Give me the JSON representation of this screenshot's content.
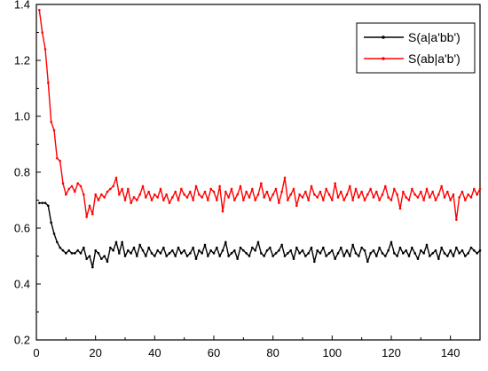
{
  "chart_data": {
    "type": "line",
    "title": "",
    "xlabel": "",
    "ylabel": "",
    "xlim": [
      0,
      150
    ],
    "ylim": [
      0.2,
      1.4
    ],
    "xticks": [
      0,
      20,
      40,
      60,
      80,
      100,
      120,
      140
    ],
    "yticks": [
      0.2,
      0.4,
      0.6,
      0.8,
      1.0,
      1.2,
      1.4
    ],
    "xtick_labels": [
      "0",
      "20",
      "40",
      "60",
      "80",
      "100",
      "120",
      "140"
    ],
    "ytick_labels": [
      "0.2",
      "0.4",
      "0.6",
      "0.8",
      "1.0",
      "1.2",
      "1.4"
    ],
    "grid": false,
    "legend_position": "top-right",
    "x": [
      1,
      2,
      3,
      4,
      5,
      6,
      7,
      8,
      9,
      10,
      11,
      12,
      13,
      14,
      15,
      16,
      17,
      18,
      19,
      20,
      21,
      22,
      23,
      24,
      25,
      26,
      27,
      28,
      29,
      30,
      31,
      32,
      33,
      34,
      35,
      36,
      37,
      38,
      39,
      40,
      41,
      42,
      43,
      44,
      45,
      46,
      47,
      48,
      49,
      50,
      51,
      52,
      53,
      54,
      55,
      56,
      57,
      58,
      59,
      60,
      61,
      62,
      63,
      64,
      65,
      66,
      67,
      68,
      69,
      70,
      71,
      72,
      73,
      74,
      75,
      76,
      77,
      78,
      79,
      80,
      81,
      82,
      83,
      84,
      85,
      86,
      87,
      88,
      89,
      90,
      91,
      92,
      93,
      94,
      95,
      96,
      97,
      98,
      99,
      100,
      101,
      102,
      103,
      104,
      105,
      106,
      107,
      108,
      109,
      110,
      111,
      112,
      113,
      114,
      115,
      116,
      117,
      118,
      119,
      120,
      121,
      122,
      123,
      124,
      125,
      126,
      127,
      128,
      129,
      130,
      131,
      132,
      133,
      134,
      135,
      136,
      137,
      138,
      139,
      140,
      141,
      142,
      143,
      144,
      145,
      146,
      147,
      148,
      149,
      150
    ],
    "series": [
      {
        "name": "S(a|a'bb')",
        "color": "#000000",
        "values": [
          0.69,
          0.69,
          0.69,
          0.68,
          0.62,
          0.58,
          0.55,
          0.53,
          0.52,
          0.51,
          0.52,
          0.51,
          0.51,
          0.52,
          0.51,
          0.53,
          0.49,
          0.5,
          0.46,
          0.52,
          0.51,
          0.49,
          0.5,
          0.48,
          0.53,
          0.52,
          0.55,
          0.51,
          0.55,
          0.5,
          0.52,
          0.51,
          0.53,
          0.5,
          0.54,
          0.52,
          0.5,
          0.53,
          0.51,
          0.5,
          0.52,
          0.51,
          0.53,
          0.5,
          0.51,
          0.52,
          0.5,
          0.53,
          0.51,
          0.52,
          0.5,
          0.51,
          0.53,
          0.49,
          0.52,
          0.51,
          0.54,
          0.5,
          0.52,
          0.51,
          0.53,
          0.5,
          0.52,
          0.55,
          0.5,
          0.51,
          0.52,
          0.49,
          0.53,
          0.52,
          0.51,
          0.5,
          0.53,
          0.52,
          0.55,
          0.51,
          0.5,
          0.52,
          0.53,
          0.5,
          0.51,
          0.52,
          0.54,
          0.5,
          0.51,
          0.52,
          0.49,
          0.53,
          0.51,
          0.52,
          0.5,
          0.51,
          0.53,
          0.48,
          0.52,
          0.51,
          0.53,
          0.5,
          0.51,
          0.52,
          0.49,
          0.51,
          0.53,
          0.5,
          0.52,
          0.5,
          0.54,
          0.51,
          0.5,
          0.53,
          0.52,
          0.48,
          0.51,
          0.52,
          0.5,
          0.53,
          0.51,
          0.5,
          0.52,
          0.55,
          0.51,
          0.5,
          0.53,
          0.51,
          0.52,
          0.5,
          0.53,
          0.51,
          0.49,
          0.52,
          0.51,
          0.54,
          0.5,
          0.51,
          0.52,
          0.49,
          0.53,
          0.51,
          0.5,
          0.52,
          0.5,
          0.53,
          0.51,
          0.52,
          0.5,
          0.51,
          0.53,
          0.52,
          0.51,
          0.52
        ]
      },
      {
        "name": "S(ab|a'b')",
        "color": "#ff0000",
        "values": [
          1.38,
          1.3,
          1.24,
          1.12,
          0.98,
          0.95,
          0.85,
          0.84,
          0.76,
          0.72,
          0.74,
          0.75,
          0.73,
          0.76,
          0.75,
          0.72,
          0.64,
          0.68,
          0.65,
          0.72,
          0.7,
          0.72,
          0.71,
          0.73,
          0.74,
          0.75,
          0.78,
          0.72,
          0.74,
          0.7,
          0.74,
          0.69,
          0.71,
          0.7,
          0.72,
          0.75,
          0.71,
          0.73,
          0.7,
          0.72,
          0.71,
          0.74,
          0.7,
          0.72,
          0.69,
          0.71,
          0.73,
          0.7,
          0.74,
          0.72,
          0.71,
          0.73,
          0.7,
          0.75,
          0.72,
          0.71,
          0.73,
          0.7,
          0.74,
          0.73,
          0.7,
          0.75,
          0.66,
          0.73,
          0.71,
          0.74,
          0.7,
          0.72,
          0.75,
          0.7,
          0.73,
          0.71,
          0.74,
          0.7,
          0.72,
          0.76,
          0.71,
          0.73,
          0.7,
          0.72,
          0.74,
          0.69,
          0.73,
          0.78,
          0.7,
          0.72,
          0.74,
          0.68,
          0.72,
          0.71,
          0.73,
          0.7,
          0.75,
          0.72,
          0.71,
          0.73,
          0.7,
          0.74,
          0.72,
          0.7,
          0.76,
          0.71,
          0.73,
          0.7,
          0.72,
          0.75,
          0.7,
          0.74,
          0.71,
          0.73,
          0.7,
          0.72,
          0.74,
          0.71,
          0.73,
          0.7,
          0.72,
          0.75,
          0.71,
          0.7,
          0.74,
          0.72,
          0.67,
          0.73,
          0.71,
          0.7,
          0.74,
          0.72,
          0.71,
          0.73,
          0.7,
          0.74,
          0.71,
          0.73,
          0.7,
          0.72,
          0.75,
          0.71,
          0.73,
          0.7,
          0.72,
          0.63,
          0.71,
          0.73,
          0.7,
          0.72,
          0.71,
          0.74,
          0.72,
          0.74
        ]
      }
    ]
  }
}
